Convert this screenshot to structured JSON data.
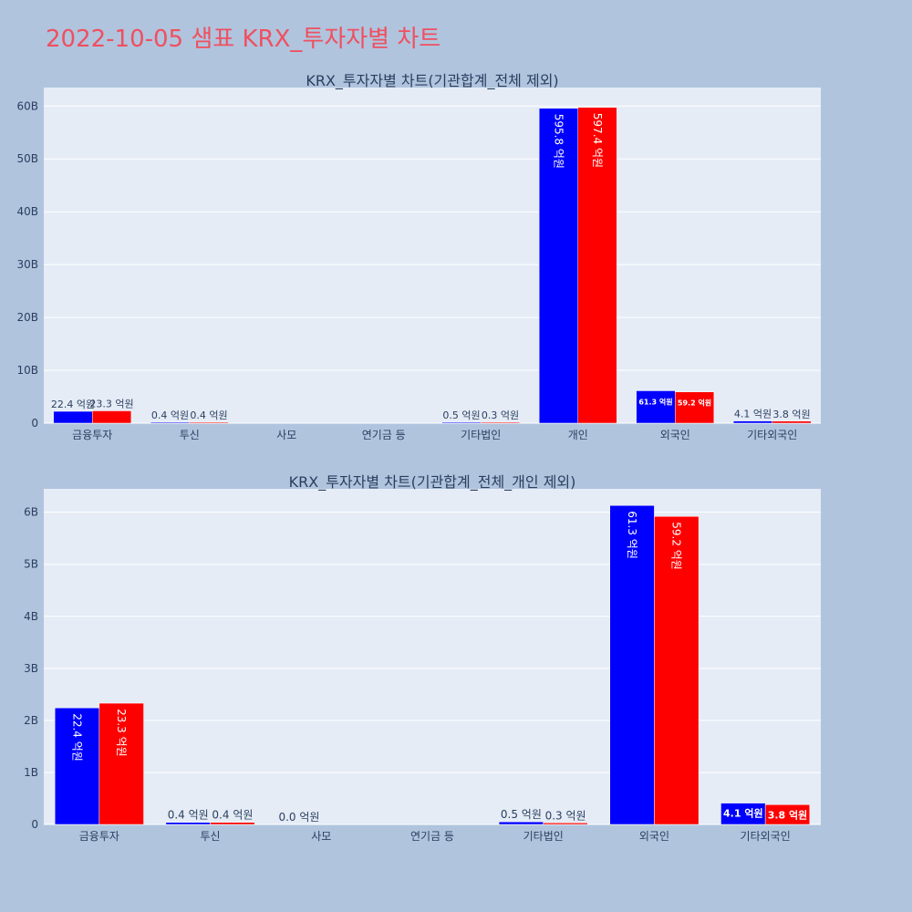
{
  "page": {
    "title": "2022-10-05 샘표 KRX_투자자별 차트"
  },
  "colors": {
    "series_a": "#0000ff",
    "series_b": "#ff0000",
    "background": "#b0c4de",
    "plot_bg": "#e5ecf6"
  },
  "chart_data": [
    {
      "type": "bar",
      "title": "KRX_투자자별 차트(기관합계_전체 제외)",
      "categories": [
        "금융투자",
        "투신",
        "사모",
        "연기금 등",
        "기타법인",
        "개인",
        "외국인",
        "기타외국인"
      ],
      "series": [
        {
          "color": "#0000ff",
          "values": [
            2.24,
            0.04,
            0,
            0,
            0.05,
            59.58,
            6.13,
            0.41
          ],
          "labels": [
            "22.4 억원",
            "0.4 억원",
            "",
            "",
            "0.5 억원",
            "595.8 억원",
            "61.3 억원",
            "4.1 억원"
          ]
        },
        {
          "color": "#ff0000",
          "values": [
            2.33,
            0.04,
            0,
            0,
            0.03,
            59.74,
            5.92,
            0.38
          ],
          "labels": [
            "23.3 억원",
            "0.4 억원",
            "",
            "",
            "0.3 억원",
            "597.4 억원",
            "59.2 억원",
            "3.8 억원"
          ]
        }
      ],
      "y_ticks": [
        "0",
        "10B",
        "20B",
        "30B",
        "40B",
        "50B",
        "60B"
      ],
      "y_tick_values": [
        0,
        10,
        20,
        30,
        40,
        50,
        60
      ],
      "ylim": [
        0,
        63.5
      ],
      "grid": true
    },
    {
      "type": "bar",
      "title": "KRX_투자자별 차트(기관합계_전체_개인 제외)",
      "categories": [
        "금융투자",
        "투신",
        "사모",
        "연기금 등",
        "기타법인",
        "외국인",
        "기타외국인"
      ],
      "series": [
        {
          "color": "#0000ff",
          "values": [
            2.24,
            0.04,
            0,
            0,
            0.05,
            6.13,
            0.41
          ],
          "labels": [
            "22.4 억원",
            "0.4 억원",
            "0.0 억원",
            "",
            "0.5 억원",
            "61.3 억원",
            "4.1 억원"
          ]
        },
        {
          "color": "#ff0000",
          "values": [
            2.33,
            0.04,
            0,
            0,
            0.03,
            5.92,
            0.38
          ],
          "labels": [
            "23.3 억원",
            "0.4 억원",
            "",
            "",
            "0.3 억원",
            "59.2 억원",
            "3.8 억원"
          ]
        }
      ],
      "y_ticks": [
        "0",
        "1B",
        "2B",
        "3B",
        "4B",
        "5B",
        "6B"
      ],
      "y_tick_values": [
        0,
        1,
        2,
        3,
        4,
        5,
        6
      ],
      "ylim": [
        0,
        6.45
      ],
      "grid": true
    }
  ]
}
